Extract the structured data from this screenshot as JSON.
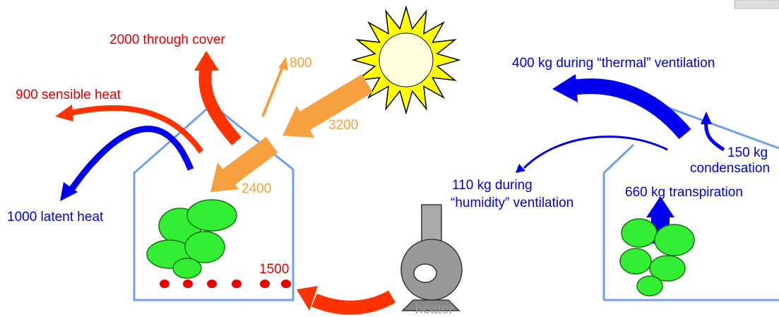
{
  "heat_balance": {
    "through_cover": "2000 through cover",
    "reflected": "800",
    "sensible_heat": "900 sensible heat",
    "solar_incoming": "3200",
    "solar_entering": "2400",
    "latent_heat": "1000 latent heat",
    "heater_supply": "1500",
    "heater": "heater"
  },
  "vapour_balance": {
    "thermal_ventilation": "400 kg during “thermal” ventilation",
    "condensation": [
      "150 kg",
      "condensation"
    ],
    "humidity_ventilation": [
      "110 kg during",
      "“humidity” ventilation"
    ],
    "transpiration": "660 kg transpiration"
  }
}
